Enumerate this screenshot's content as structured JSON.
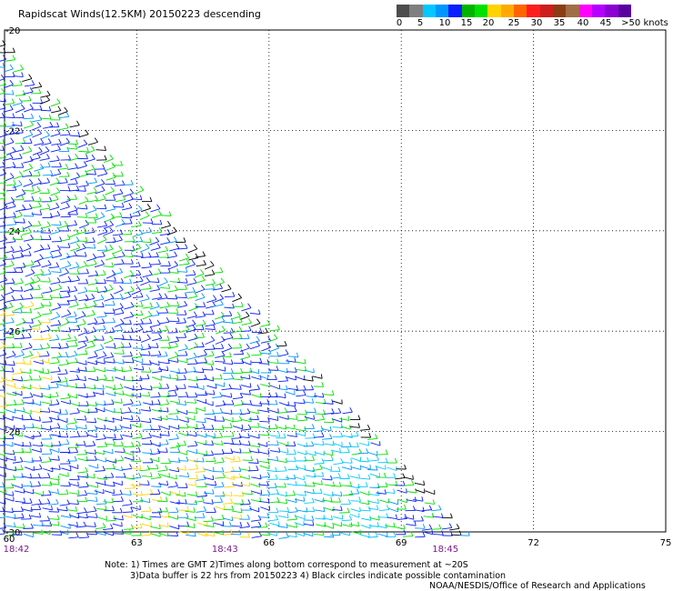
{
  "title": "Rapidscat Winds(12.5KM) 20150223 descending",
  "legend": {
    "colors": [
      "#4d4d4d",
      "#7f7f7f",
      "#00c8ff",
      "#0096ff",
      "#0a1eff",
      "#00b400",
      "#00e100",
      "#ffd200",
      "#ffaa00",
      "#ff6400",
      "#ff1e1e",
      "#cd1e1e",
      "#8c3c14",
      "#a06e46",
      "#ff00ff",
      "#b400ff",
      "#8c00d2",
      "#5a00a0"
    ],
    "labels": [
      "0",
      "5",
      "10",
      "15",
      "20",
      "25",
      "30",
      "35",
      "40",
      "45",
      ">50 knots"
    ]
  },
  "map": {
    "lon_ticks": [
      "60",
      "63",
      "66",
      "69",
      "72",
      "75"
    ],
    "lat_ticks": [
      "-20",
      "-22",
      "-24",
      "-26",
      "-28",
      "-30"
    ],
    "lon_range": [
      60,
      75
    ],
    "lat_range": [
      -20,
      -30
    ],
    "grid": "dotted",
    "time_labels": [
      {
        "text": "18:42",
        "lon": 60
      },
      {
        "text": "18:43",
        "lon": 65
      },
      {
        "text": "18:45",
        "lon": 70
      }
    ]
  },
  "notes": {
    "line1": "Note: 1) Times are GMT 2)Times along bottom correspond to measurement at ~20S",
    "line2": "3)Data buffer is 22 hrs from 20150223 4) Black circles indicate possible contamination",
    "credit": "NOAA/NESDIS/Office of Research and Applications"
  }
}
